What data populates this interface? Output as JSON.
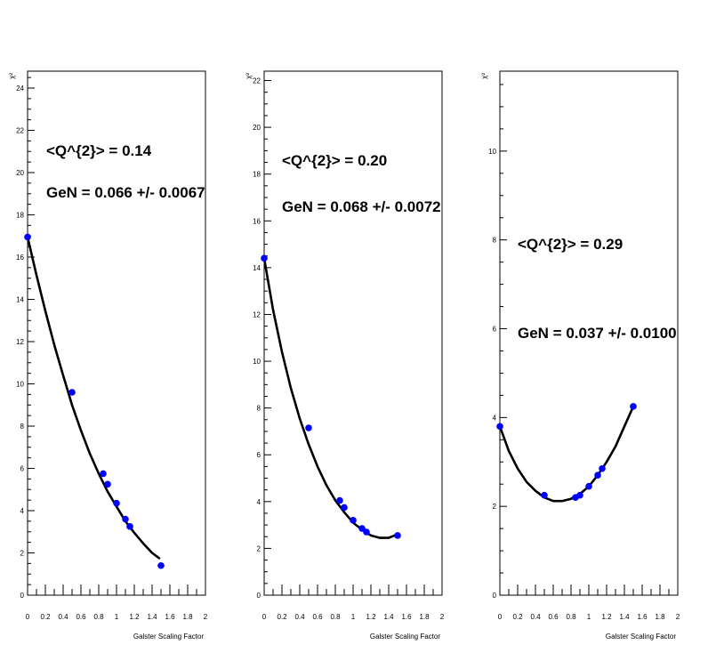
{
  "chart_data": [
    {
      "type": "scatter",
      "title": "",
      "xlabel": "Galster Scaling Factor",
      "ylabel": "χ²",
      "xlim": [
        0,
        2
      ],
      "ylim": [
        0,
        24.8
      ],
      "x_ticks": [
        0,
        0.2,
        0.4,
        0.6,
        0.8,
        1,
        1.2,
        1.4,
        1.6,
        1.8,
        2
      ],
      "x_tick_labels": [
        "0",
        "0.2",
        "0.4",
        "0.6",
        "0.8",
        "1",
        "1.2",
        "1.4",
        "1.6",
        "1.8",
        "2"
      ],
      "y_ticks": [
        0,
        2,
        4,
        6,
        8,
        10,
        12,
        14,
        16,
        18,
        20,
        22,
        24
      ],
      "y_tick_labels": [
        "0",
        "2",
        "4",
        "6",
        "8",
        "10",
        "12",
        "14",
        "16",
        "18",
        "20",
        "22",
        "24"
      ],
      "series": [
        {
          "kind": "points",
          "x": [
            0,
            0.5,
            0.85,
            0.9,
            1.0,
            1.1,
            1.15,
            1.5
          ],
          "y": [
            16.95,
            9.6,
            5.75,
            5.25,
            4.35,
            3.6,
            3.25,
            1.4
          ]
        },
        {
          "kind": "fit-curve",
          "x": [
            0,
            0.1,
            0.2,
            0.3,
            0.4,
            0.5,
            0.6,
            0.7,
            0.8,
            0.9,
            1.0,
            1.1,
            1.2,
            1.3,
            1.4,
            1.48
          ],
          "y": [
            16.95,
            15.15,
            13.45,
            11.85,
            10.4,
            9.0,
            7.8,
            6.7,
            5.75,
            4.9,
            4.2,
            3.5,
            2.95,
            2.45,
            2.0,
            1.75
          ]
        }
      ],
      "annotations": [
        "<Q^{2}> = 0.14",
        "GeN = 0.066 +/- 0.0067"
      ],
      "grid": false,
      "colors": {
        "points": "#0000ff",
        "curve": "#000000"
      }
    },
    {
      "type": "scatter",
      "title": "",
      "xlabel": "Galster Scaling Factor",
      "ylabel": "χ²",
      "xlim": [
        0,
        2
      ],
      "ylim": [
        0,
        22.4
      ],
      "x_ticks": [
        0,
        0.2,
        0.4,
        0.6,
        0.8,
        1,
        1.2,
        1.4,
        1.6,
        1.8,
        2
      ],
      "x_tick_labels": [
        "0",
        "0.2",
        "0.4",
        "0.6",
        "0.8",
        "1",
        "1.2",
        "1.4",
        "1.6",
        "1.8",
        "2"
      ],
      "y_ticks": [
        0,
        2,
        4,
        6,
        8,
        10,
        12,
        14,
        16,
        18,
        20,
        22
      ],
      "y_tick_labels": [
        "0",
        "2",
        "4",
        "6",
        "8",
        "10",
        "12",
        "14",
        "16",
        "18",
        "20",
        "22"
      ],
      "series": [
        {
          "kind": "points",
          "x": [
            0,
            0.5,
            0.85,
            0.9,
            1.0,
            1.1,
            1.15,
            1.5
          ],
          "y": [
            14.4,
            7.15,
            4.05,
            3.75,
            3.2,
            2.85,
            2.7,
            2.55
          ]
        },
        {
          "kind": "fit-curve",
          "x": [
            0,
            0.1,
            0.2,
            0.3,
            0.4,
            0.5,
            0.6,
            0.7,
            0.8,
            0.9,
            1.0,
            1.1,
            1.2,
            1.3,
            1.4,
            1.5
          ],
          "y": [
            14.4,
            12.2,
            10.4,
            8.85,
            7.55,
            6.45,
            5.5,
            4.7,
            4.05,
            3.55,
            3.1,
            2.8,
            2.55,
            2.45,
            2.45,
            2.6
          ]
        }
      ],
      "annotations": [
        "<Q^{2}> = 0.20",
        "GeN = 0.068 +/- 0.0072"
      ],
      "grid": false,
      "colors": {
        "points": "#0000ff",
        "curve": "#000000"
      }
    },
    {
      "type": "scatter",
      "title": "",
      "xlabel": "Galster Scaling Factor",
      "ylabel": "χ²",
      "xlim": [
        0,
        2
      ],
      "ylim": [
        0,
        11.8
      ],
      "x_ticks": [
        0,
        0.2,
        0.4,
        0.6,
        0.8,
        1,
        1.2,
        1.4,
        1.6,
        1.8,
        2
      ],
      "x_tick_labels": [
        "0",
        "0.2",
        "0.4",
        "0.6",
        "0.8",
        "1",
        "1.2",
        "1.4",
        "1.6",
        "1.8",
        "2"
      ],
      "y_ticks": [
        0,
        2,
        4,
        6,
        8,
        10
      ],
      "y_tick_labels": [
        "0",
        "2",
        "4",
        "6",
        "8",
        "10"
      ],
      "series": [
        {
          "kind": "points",
          "x": [
            0,
            0.5,
            0.85,
            0.9,
            1.0,
            1.1,
            1.15,
            1.5
          ],
          "y": [
            3.8,
            2.25,
            2.2,
            2.25,
            2.45,
            2.7,
            2.85,
            4.25
          ]
        },
        {
          "kind": "fit-curve",
          "x": [
            0,
            0.1,
            0.2,
            0.3,
            0.4,
            0.5,
            0.6,
            0.7,
            0.8,
            0.9,
            1.0,
            1.1,
            1.2,
            1.3,
            1.4,
            1.5
          ],
          "y": [
            3.8,
            3.25,
            2.85,
            2.55,
            2.35,
            2.2,
            2.12,
            2.12,
            2.17,
            2.28,
            2.45,
            2.7,
            3.0,
            3.35,
            3.8,
            4.25
          ]
        }
      ],
      "annotations": [
        "<Q^{2}> = 0.29",
        "GeN = 0.037 +/- 0.0100"
      ],
      "grid": false,
      "colors": {
        "points": "#0000ff",
        "curve": "#000000"
      }
    }
  ]
}
